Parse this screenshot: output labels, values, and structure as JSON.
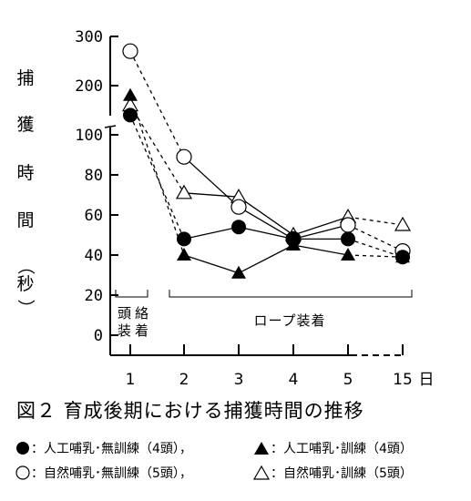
{
  "chart_data": {
    "type": "line",
    "caption": "図２ 育成後期における捕獲時間の推移",
    "ylabel_chars": [
      "捕",
      "獲",
      "時",
      "間",
      "（",
      "秒",
      "）"
    ],
    "yticks_lower": [
      "0",
      "20",
      "40",
      "60",
      "80",
      "100"
    ],
    "yticks_upper": [
      "200",
      "300"
    ],
    "xtick_labels": [
      "1",
      "2",
      "3",
      "4",
      "5",
      "15"
    ],
    "x_unit": "日",
    "annotations": {
      "head_halter_chars": [
        "頭",
        "絡"
      ],
      "head_halter_chars_2": [
        "装",
        "着"
      ],
      "rope": "ロープ装着"
    },
    "ylim": [
      0,
      300
    ],
    "series": [
      {
        "key": "filled_circle",
        "marker": "filled-circle",
        "style": "solid",
        "x": [
          1,
          2,
          3,
          4,
          5,
          15
        ],
        "y": [
          140,
          48,
          54,
          48,
          48,
          39
        ]
      },
      {
        "key": "filled_triangle",
        "marker": "filled-triangle",
        "style": "solid",
        "x": [
          1,
          2,
          3,
          4,
          5,
          15
        ],
        "y": [
          180,
          40,
          31,
          45,
          40,
          39
        ]
      },
      {
        "key": "open_circle",
        "marker": "open-circle",
        "style": "solid",
        "x": [
          1,
          2,
          3,
          4,
          5,
          15
        ],
        "y": [
          270,
          89,
          64,
          48,
          55,
          42
        ]
      },
      {
        "key": "open_triangle",
        "marker": "open-triangle",
        "style": "solid",
        "x": [
          1,
          2,
          3,
          4,
          5,
          15
        ],
        "y": [
          160,
          71,
          69,
          50,
          59,
          55
        ]
      }
    ],
    "legend": {
      "row1": [
        {
          "marker": "filled-circle",
          "label": "：人工哺乳･無訓練（4頭），"
        },
        {
          "marker": "filled-triangle",
          "label": "：人工哺乳･訓練（4頭）"
        }
      ],
      "row2": [
        {
          "marker": "open-circle",
          "label": "：自然哺乳･無訓練（5頭），"
        },
        {
          "marker": "open-triangle",
          "label": "：自然哺乳･訓練（5頭）"
        }
      ]
    }
  }
}
